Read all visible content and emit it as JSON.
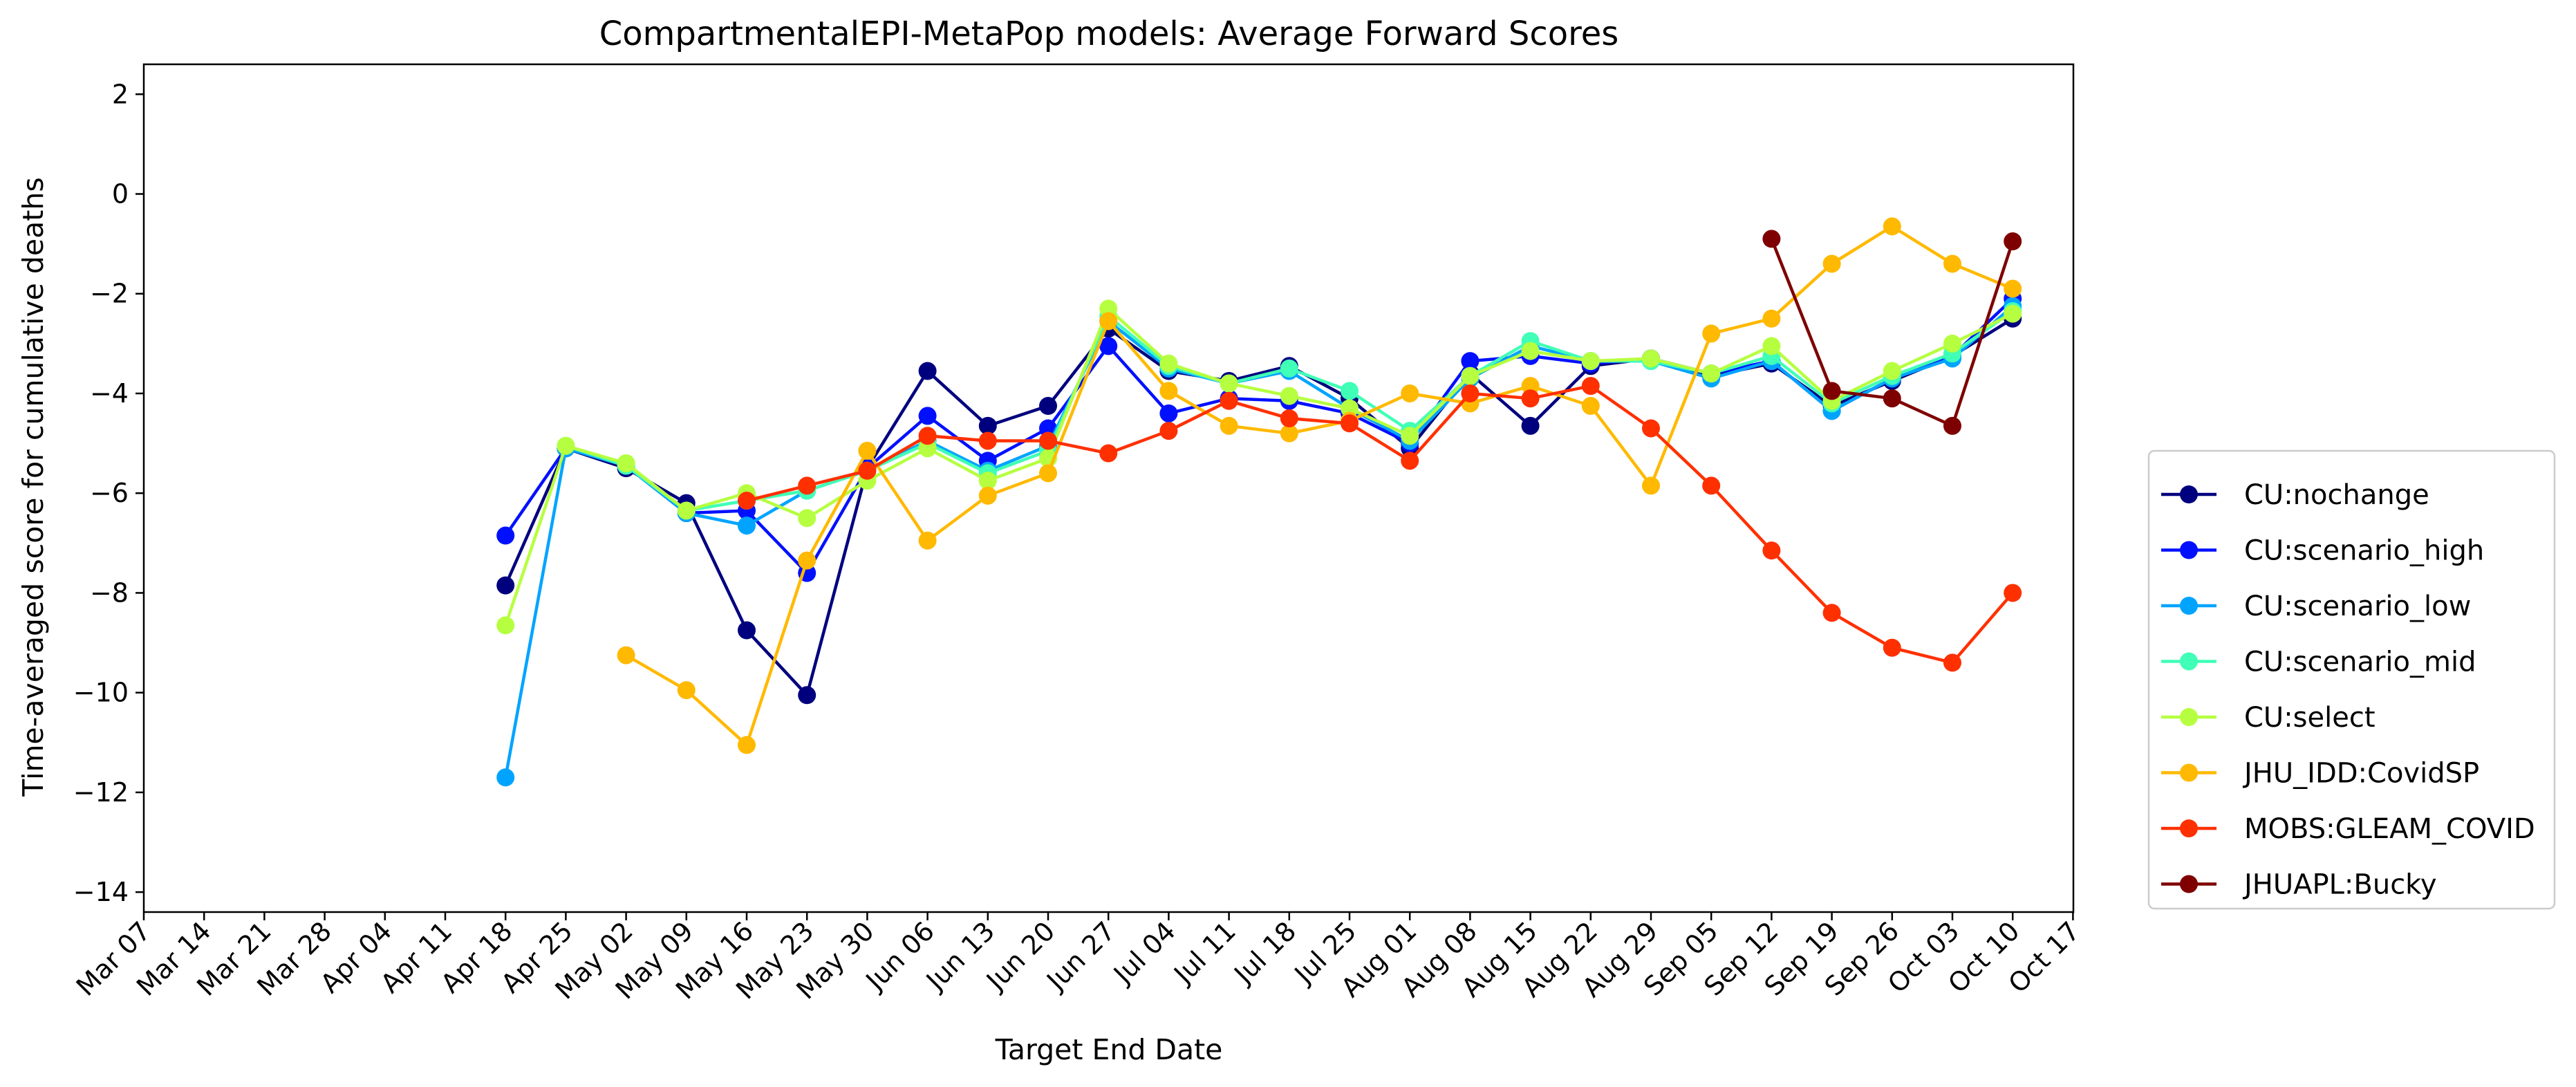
{
  "chart_data": {
    "type": "line",
    "title": "CompartmentalEPI-MetaPop models: Average Forward Scores",
    "xlabel": "Target End Date",
    "ylabel": "Time-averaged score for cumulative deaths",
    "ylim": [
      -14.4,
      2.6
    ],
    "yticks": [
      2,
      0,
      -2,
      -4,
      -6,
      -8,
      -10,
      -12,
      -14
    ],
    "ytick_labels": [
      "2",
      "0",
      "−2",
      "−4",
      "−6",
      "−8",
      "−10",
      "−12",
      "−14"
    ],
    "categories": [
      "Mar 07",
      "Mar 14",
      "Mar 21",
      "Mar 28",
      "Apr 04",
      "Apr 11",
      "Apr 18",
      "Apr 25",
      "May 02",
      "May 09",
      "May 16",
      "May 23",
      "May 30",
      "Jun 06",
      "Jun 13",
      "Jun 20",
      "Jun 27",
      "Jul 04",
      "Jul 11",
      "Jul 18",
      "Jul 25",
      "Aug 01",
      "Aug 08",
      "Aug 15",
      "Aug 22",
      "Aug 29",
      "Sep 05",
      "Sep 12",
      "Sep 19",
      "Sep 26",
      "Oct 03",
      "Oct 10",
      "Oct 17"
    ],
    "grid": false,
    "legend_position": "right",
    "series": [
      {
        "name": "CU:nochange",
        "color": "#00007f",
        "values": [
          null,
          null,
          null,
          null,
          null,
          null,
          -7.85,
          -5.1,
          -5.5,
          -6.2,
          -8.75,
          -10.05,
          -5.5,
          -3.55,
          -4.65,
          -4.25,
          -2.7,
          -3.55,
          -3.75,
          -3.45,
          -4.1,
          -5.1,
          -3.6,
          -4.65,
          -3.45,
          -3.3,
          -3.65,
          -3.4,
          -4.25,
          -3.75,
          -3.25,
          -2.5,
          null
        ]
      },
      {
        "name": "CU:scenario_high",
        "color": "#0010ff",
        "values": [
          null,
          null,
          null,
          null,
          null,
          null,
          -6.85,
          -5.1,
          -5.45,
          -6.4,
          -6.35,
          -7.6,
          -5.5,
          -4.45,
          -5.35,
          -4.7,
          -3.05,
          -4.4,
          -4.1,
          -4.15,
          -4.4,
          -5.0,
          -3.35,
          -3.25,
          -3.4,
          -3.3,
          -3.6,
          -3.35,
          -4.35,
          -3.7,
          -3.25,
          -2.1,
          null
        ]
      },
      {
        "name": "CU:scenario_low",
        "color": "#00a4ff",
        "values": [
          null,
          null,
          null,
          null,
          null,
          null,
          -11.7,
          -5.1,
          -5.45,
          -6.4,
          -6.65,
          -5.95,
          -5.55,
          -4.95,
          -5.55,
          -5.05,
          -2.55,
          -3.5,
          -3.8,
          -3.55,
          -4.3,
          -4.95,
          -3.7,
          -3.05,
          -3.35,
          -3.35,
          -3.7,
          -3.35,
          -4.35,
          -3.7,
          -3.3,
          -2.25,
          null
        ]
      },
      {
        "name": "CU:scenario_mid",
        "color": "#40ffb6",
        "values": [
          null,
          null,
          null,
          null,
          null,
          null,
          null,
          -5.05,
          -5.45,
          -6.35,
          -6.15,
          -5.95,
          -5.55,
          -5.0,
          -5.6,
          -5.15,
          -2.45,
          -3.45,
          -3.8,
          -3.5,
          -3.95,
          -4.75,
          -3.65,
          -2.95,
          -3.35,
          -3.35,
          -3.6,
          -3.25,
          -4.2,
          -3.65,
          -3.2,
          -2.35,
          null
        ]
      },
      {
        "name": "CU:select",
        "color": "#b6ff40",
        "values": [
          null,
          null,
          null,
          null,
          null,
          null,
          -8.65,
          -5.05,
          -5.4,
          -6.35,
          -6.0,
          -6.5,
          -5.75,
          -5.1,
          -5.75,
          -5.3,
          -2.3,
          -3.4,
          -3.8,
          -4.05,
          -4.3,
          -4.85,
          -3.65,
          -3.15,
          -3.35,
          -3.3,
          -3.6,
          -3.05,
          -4.15,
          -3.55,
          -3.0,
          -2.4,
          null
        ]
      },
      {
        "name": "JHU_IDD:CovidSP",
        "color": "#ffb900",
        "values": [
          null,
          null,
          null,
          null,
          null,
          null,
          null,
          null,
          -9.25,
          -9.95,
          -11.05,
          -7.35,
          -5.15,
          -6.95,
          -6.05,
          -5.6,
          -2.55,
          -3.95,
          -4.65,
          -4.8,
          -4.55,
          -4.0,
          -4.2,
          -3.85,
          -4.25,
          -5.85,
          -2.8,
          -2.5,
          -1.4,
          -0.65,
          -1.4,
          -1.9,
          null
        ]
      },
      {
        "name": "MOBS:GLEAM_COVID",
        "color": "#ff3000",
        "values": [
          null,
          null,
          null,
          null,
          null,
          null,
          null,
          null,
          null,
          null,
          -6.15,
          -5.85,
          -5.55,
          -4.85,
          -4.95,
          -4.95,
          -5.2,
          -4.75,
          -4.15,
          -4.5,
          -4.6,
          -5.35,
          -4.0,
          -4.1,
          -3.85,
          -4.7,
          -5.85,
          -7.15,
          -8.4,
          -9.1,
          -9.4,
          -8.0,
          null
        ]
      },
      {
        "name": "JHUAPL:Bucky",
        "color": "#7f0000",
        "values": [
          null,
          null,
          null,
          null,
          null,
          null,
          null,
          null,
          null,
          null,
          null,
          null,
          null,
          null,
          null,
          null,
          null,
          null,
          null,
          null,
          null,
          null,
          null,
          null,
          null,
          null,
          null,
          -0.9,
          -3.95,
          -4.1,
          -4.65,
          -0.95,
          null
        ]
      }
    ]
  }
}
